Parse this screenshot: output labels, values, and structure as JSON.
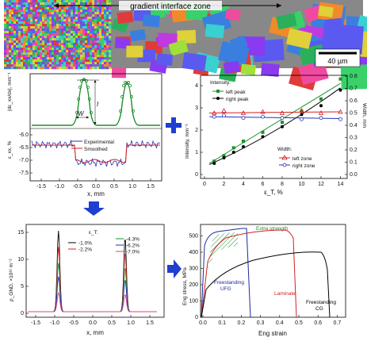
{
  "micrograph": {
    "zone_label": "gradient interface zone",
    "scale_bar": "40 µm"
  },
  "panel_profile": {
    "top_ylabel": "|dε_xx/dx|, mm⁻¹",
    "peak_labels": [
      "I",
      "W"
    ],
    "bottom_ylabel": "ε_xx, %",
    "ytick_labels": [
      "-6.0",
      "-6.5",
      "-7.0",
      "-7.5"
    ],
    "xtick_labels": [
      "-1.5",
      "-1.0",
      "-0.5",
      "0.0",
      "0.5",
      "1.0",
      "1.5"
    ],
    "xlabel": "x, mm",
    "legend": [
      "Experimental",
      "Smoothed"
    ]
  },
  "panel_intensity": {
    "ylabel_left": "Intensity, mm⁻¹",
    "ylabel_right": "Width, mm",
    "xlabel": "ε_T, %",
    "legend_intensity_title": "Intensity:",
    "legend_width_title": "Width:",
    "legend_items": [
      "left peak",
      "right peak",
      "left zone",
      "right zone"
    ],
    "left_ticks": [
      "0",
      "1",
      "2",
      "3",
      "4"
    ],
    "right_ticks": [
      "0.0",
      "0.1",
      "0.2",
      "0.3",
      "0.4",
      "0.5",
      "0.6",
      "0.7",
      "0.8"
    ],
    "xticks": [
      "0",
      "2",
      "4",
      "6",
      "8",
      "10",
      "12",
      "14"
    ]
  },
  "panel_gnd": {
    "ylabel": "ρ_GND, ×10¹² m⁻²",
    "xlabel": "x, mm",
    "legend_title": "ε_T:",
    "legend_items": [
      "-1.0%",
      "-2.2%",
      "-4.3%",
      "-6.2%",
      "-7.0%"
    ],
    "yticks": [
      "0",
      "5",
      "10",
      "15"
    ],
    "xticks": [
      "-1.5",
      "-1.0",
      "-0.5",
      "0.0",
      "0.5",
      "1.0",
      "1.5"
    ]
  },
  "panel_stress": {
    "ylabel": "Eng stress, MPa",
    "xlabel": "Eng strain",
    "annotations": [
      "Extra strength",
      "Freestanding UFG",
      "Laminate",
      "Freestanding CG"
    ],
    "yticks": [
      "0",
      "100",
      "200",
      "300",
      "400",
      "500"
    ],
    "xticks": [
      "0.0",
      "0.1",
      "0.2",
      "0.3",
      "0.4",
      "0.5",
      "0.6",
      "0.7"
    ]
  },
  "colors": {
    "green": "#1a8f2a",
    "red": "#d62020",
    "blue": "#2233bb",
    "navy": "#1a2aa0",
    "arrow_blue": "#1f3fd0",
    "pink": "#e04080"
  }
}
